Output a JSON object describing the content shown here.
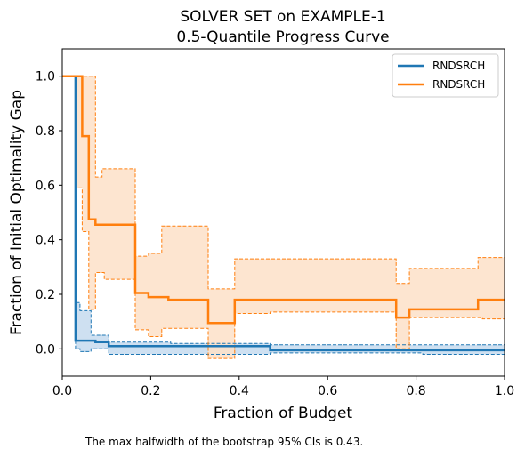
{
  "chart_data": {
    "type": "line",
    "title_line1": "SOLVER SET on EXAMPLE-1",
    "title_line2": "0.5-Quantile Progress Curve",
    "xlabel": "Fraction of Budget",
    "ylabel": "Fraction of Initial Optimality Gap",
    "xlim": [
      0,
      1
    ],
    "ylim": [
      -0.1,
      1.1
    ],
    "xticks": [
      {
        "v": 0.0,
        "label": "0.0"
      },
      {
        "v": 0.2,
        "label": "0.2"
      },
      {
        "v": 0.4,
        "label": "0.4"
      },
      {
        "v": 0.6,
        "label": "0.6"
      },
      {
        "v": 0.8,
        "label": "0.8"
      },
      {
        "v": 1.0,
        "label": "1.0"
      }
    ],
    "yticks": [
      {
        "v": 0.0,
        "label": "0.0"
      },
      {
        "v": 0.2,
        "label": "0.2"
      },
      {
        "v": 0.4,
        "label": "0.4"
      },
      {
        "v": 0.6,
        "label": "0.6"
      },
      {
        "v": 0.8,
        "label": "0.8"
      },
      {
        "v": 1.0,
        "label": "1.0"
      }
    ],
    "grid": false,
    "legend_position": "top-right",
    "note": "The max halfwidth of the bootstrap 95% CIs is 0.43.",
    "series": [
      {
        "name": "RNDSRCH",
        "color": "#1f77b4",
        "fill": "#c6dbef",
        "x": [
          0,
          0.03,
          0.03,
          0.075,
          0.075,
          0.105,
          0.105,
          0.47,
          0.47,
          1.0
        ],
        "y": [
          1.0,
          1.0,
          0.03,
          0.03,
          0.025,
          0.025,
          0.01,
          0.01,
          -0.005,
          -0.005
        ],
        "lower_x": [
          0,
          0.03,
          0.03,
          0.04,
          0.04,
          0.065,
          0.065,
          0.105,
          0.105,
          0.47,
          0.47,
          0.815,
          0.815,
          1.0
        ],
        "lower_y": [
          1.0,
          1.0,
          0.0,
          0.0,
          -0.01,
          -0.01,
          0.0,
          0.0,
          -0.02,
          -0.02,
          -0.015,
          -0.015,
          -0.02,
          -0.02
        ],
        "upper_x": [
          0,
          0.03,
          0.03,
          0.04,
          0.04,
          0.065,
          0.065,
          0.105,
          0.105,
          0.245,
          0.245,
          0.47,
          0.47,
          1.0
        ],
        "upper_y": [
          1.0,
          1.0,
          0.17,
          0.17,
          0.14,
          0.14,
          0.05,
          0.05,
          0.025,
          0.025,
          0.02,
          0.02,
          0.015,
          0.015
        ]
      },
      {
        "name": "RNDSRCH",
        "color": "#ff7f0e",
        "fill": "#fde0c8",
        "x": [
          0,
          0.045,
          0.045,
          0.06,
          0.06,
          0.075,
          0.075,
          0.165,
          0.165,
          0.195,
          0.195,
          0.24,
          0.24,
          0.33,
          0.33,
          0.39,
          0.39,
          0.755,
          0.755,
          0.785,
          0.785,
          0.94,
          0.94,
          1.0
        ],
        "y": [
          1.0,
          1.0,
          0.78,
          0.78,
          0.475,
          0.475,
          0.455,
          0.455,
          0.205,
          0.205,
          0.19,
          0.19,
          0.18,
          0.18,
          0.095,
          0.095,
          0.18,
          0.18,
          0.115,
          0.115,
          0.145,
          0.145,
          0.18,
          0.18
        ],
        "upper_x": [
          0,
          0.045,
          0.045,
          0.06,
          0.06,
          0.075,
          0.075,
          0.09,
          0.09,
          0.165,
          0.165,
          0.195,
          0.195,
          0.225,
          0.225,
          0.33,
          0.33,
          0.39,
          0.39,
          0.755,
          0.755,
          0.785,
          0.785,
          0.94,
          0.94,
          1.0
        ],
        "upper_y": [
          1.0,
          1.0,
          1.0,
          1.0,
          1.0,
          1.0,
          0.63,
          0.63,
          0.66,
          0.66,
          0.34,
          0.34,
          0.35,
          0.35,
          0.45,
          0.45,
          0.22,
          0.22,
          0.33,
          0.33,
          0.24,
          0.24,
          0.295,
          0.295,
          0.335,
          0.335
        ],
        "lower_x": [
          0,
          0.03,
          0.03,
          0.045,
          0.045,
          0.06,
          0.06,
          0.075,
          0.075,
          0.095,
          0.095,
          0.165,
          0.165,
          0.195,
          0.195,
          0.225,
          0.225,
          0.33,
          0.33,
          0.39,
          0.39,
          0.47,
          0.47,
          0.755,
          0.755,
          0.785,
          0.785,
          0.95,
          0.95,
          1.0
        ],
        "lower_y": [
          1.0,
          1.0,
          0.59,
          0.59,
          0.43,
          0.43,
          0.145,
          0.145,
          0.28,
          0.28,
          0.255,
          0.255,
          0.07,
          0.07,
          0.045,
          0.045,
          0.075,
          0.075,
          -0.035,
          -0.035,
          0.13,
          0.13,
          0.135,
          0.135,
          0.0,
          0.0,
          0.115,
          0.115,
          0.11,
          0.11
        ]
      }
    ]
  }
}
